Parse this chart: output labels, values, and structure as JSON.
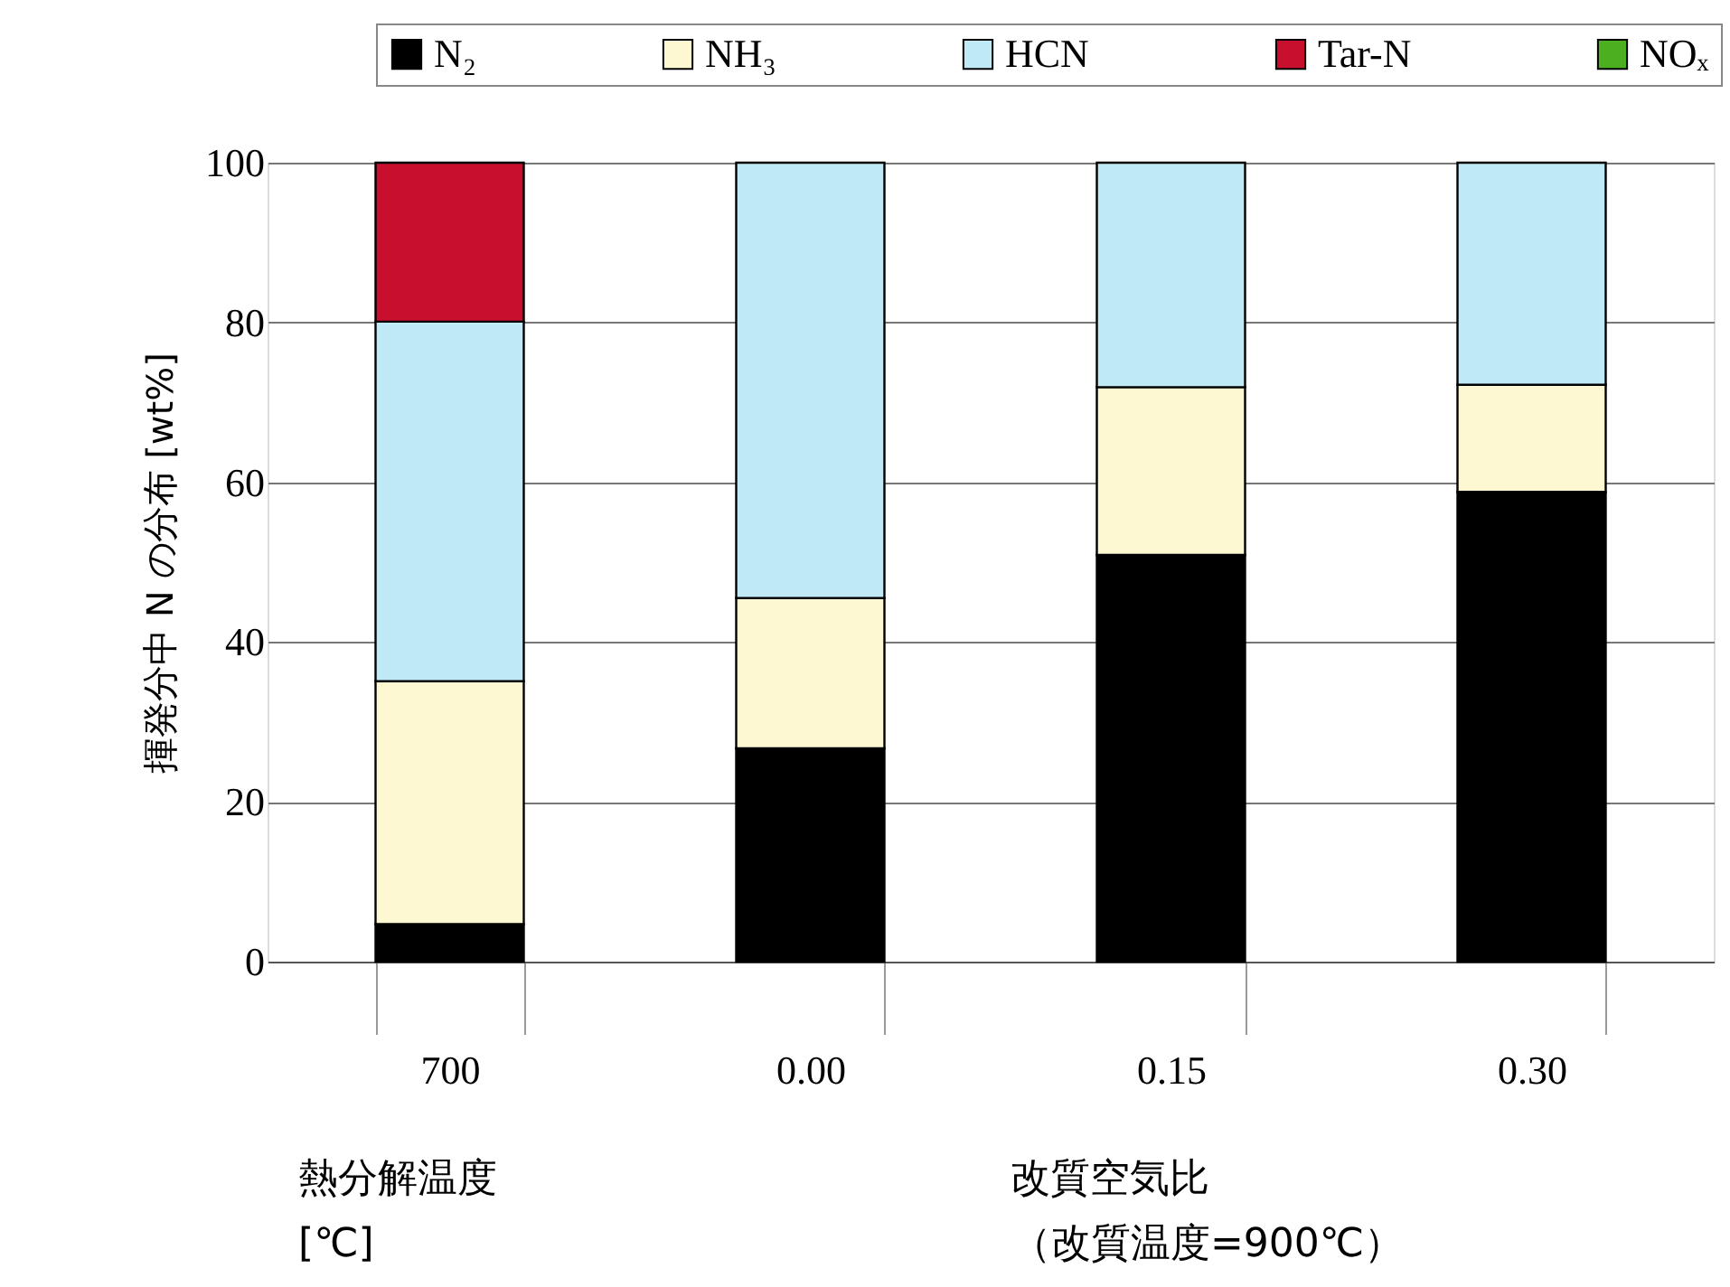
{
  "chart_data": {
    "type": "bar",
    "stacked": true,
    "ylabel": "揮発分中 N の分布 [wt%]",
    "categories": [
      "700",
      "0.00",
      "0.15",
      "0.30"
    ],
    "series": [
      {
        "name": "N₂",
        "color": "#000000",
        "values": [
          4.7,
          26.7,
          50.9,
          58.8
        ]
      },
      {
        "name": "NH₃",
        "color": "#fdf8d2",
        "values": [
          30.4,
          18.8,
          21.0,
          13.4
        ]
      },
      {
        "name": "HCN",
        "color": "#bfeaf5",
        "values": [
          45.0,
          54.5,
          28.1,
          27.8
        ]
      },
      {
        "name": "Tar-N",
        "color": "#c8102e",
        "values": [
          19.9,
          null,
          null,
          null
        ]
      },
      {
        "name": "NOₓ",
        "color": "#4caf20",
        "values": [
          null,
          null,
          null,
          null
        ]
      }
    ],
    "ylim": [
      0,
      100
    ],
    "yticks": [
      0,
      20,
      40,
      60,
      80,
      100
    ],
    "grid": "y",
    "legend": "top right",
    "annotations": [
      "熱分解温度\n[℃]",
      "改質空気比",
      "（改質温度=900℃）"
    ]
  }
}
